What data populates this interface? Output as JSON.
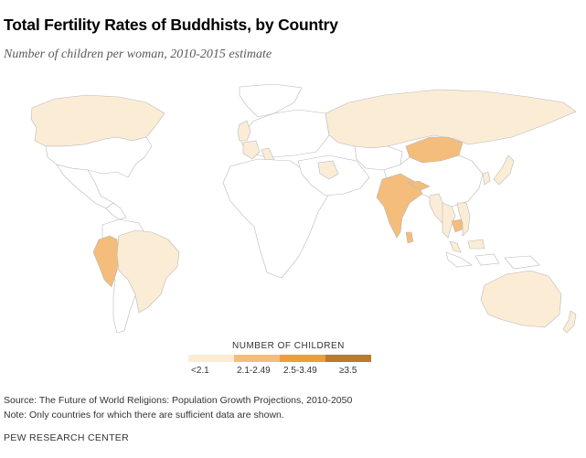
{
  "header": {
    "title": "Total Fertility Rates of Buddhists, by Country",
    "subtitle": "Number of children per woman, 2010-2015 estimate"
  },
  "legend": {
    "title": "NUMBER OF CHILDREN",
    "bins": [
      {
        "label": "<2.1",
        "color": "#fbecd6"
      },
      {
        "label": "2.1-2.49",
        "color": "#f4bd7c"
      },
      {
        "label": "2.5-3.49",
        "color": "#ed9f35"
      },
      {
        "label": "≥3.5",
        "color": "#c0782a"
      }
    ]
  },
  "map_data": {
    "type": "choropleth",
    "regions": [
      {
        "name": "Canada",
        "bin": 0
      },
      {
        "name": "United States",
        "bin": -1
      },
      {
        "name": "Mexico",
        "bin": -1
      },
      {
        "name": "Greenland",
        "bin": -1
      },
      {
        "name": "Peru",
        "bin": 1
      },
      {
        "name": "Brazil",
        "bin": 0
      },
      {
        "name": "South America (other)",
        "bin": -1
      },
      {
        "name": "United Kingdom",
        "bin": 0
      },
      {
        "name": "France",
        "bin": 0
      },
      {
        "name": "Italy",
        "bin": 0
      },
      {
        "name": "Europe (other)",
        "bin": -1
      },
      {
        "name": "Iraq",
        "bin": 0
      },
      {
        "name": "Africa",
        "bin": -1
      },
      {
        "name": "Russia",
        "bin": 0
      },
      {
        "name": "Mongolia",
        "bin": 1
      },
      {
        "name": "India",
        "bin": 1
      },
      {
        "name": "Sri Lanka",
        "bin": 1
      },
      {
        "name": "Nepal",
        "bin": 1
      },
      {
        "name": "Bhutan",
        "bin": 1
      },
      {
        "name": "Myanmar",
        "bin": 0
      },
      {
        "name": "Thailand",
        "bin": 0
      },
      {
        "name": "Cambodia",
        "bin": 1
      },
      {
        "name": "Vietnam",
        "bin": 0
      },
      {
        "name": "Malaysia",
        "bin": 0
      },
      {
        "name": "China",
        "bin": -1
      },
      {
        "name": "South Korea",
        "bin": 0
      },
      {
        "name": "Japan",
        "bin": 0
      },
      {
        "name": "Indonesia",
        "bin": -1
      },
      {
        "name": "Australia",
        "bin": 0
      },
      {
        "name": "New Zealand",
        "bin": 0
      }
    ]
  },
  "footer": {
    "source": "Source: The Future of World Religions: Population Growth Projections, 2010-2050",
    "note": "Note: Only countries for which there are sufficient data are shown.",
    "org": "PEW RESEARCH CENTER"
  }
}
